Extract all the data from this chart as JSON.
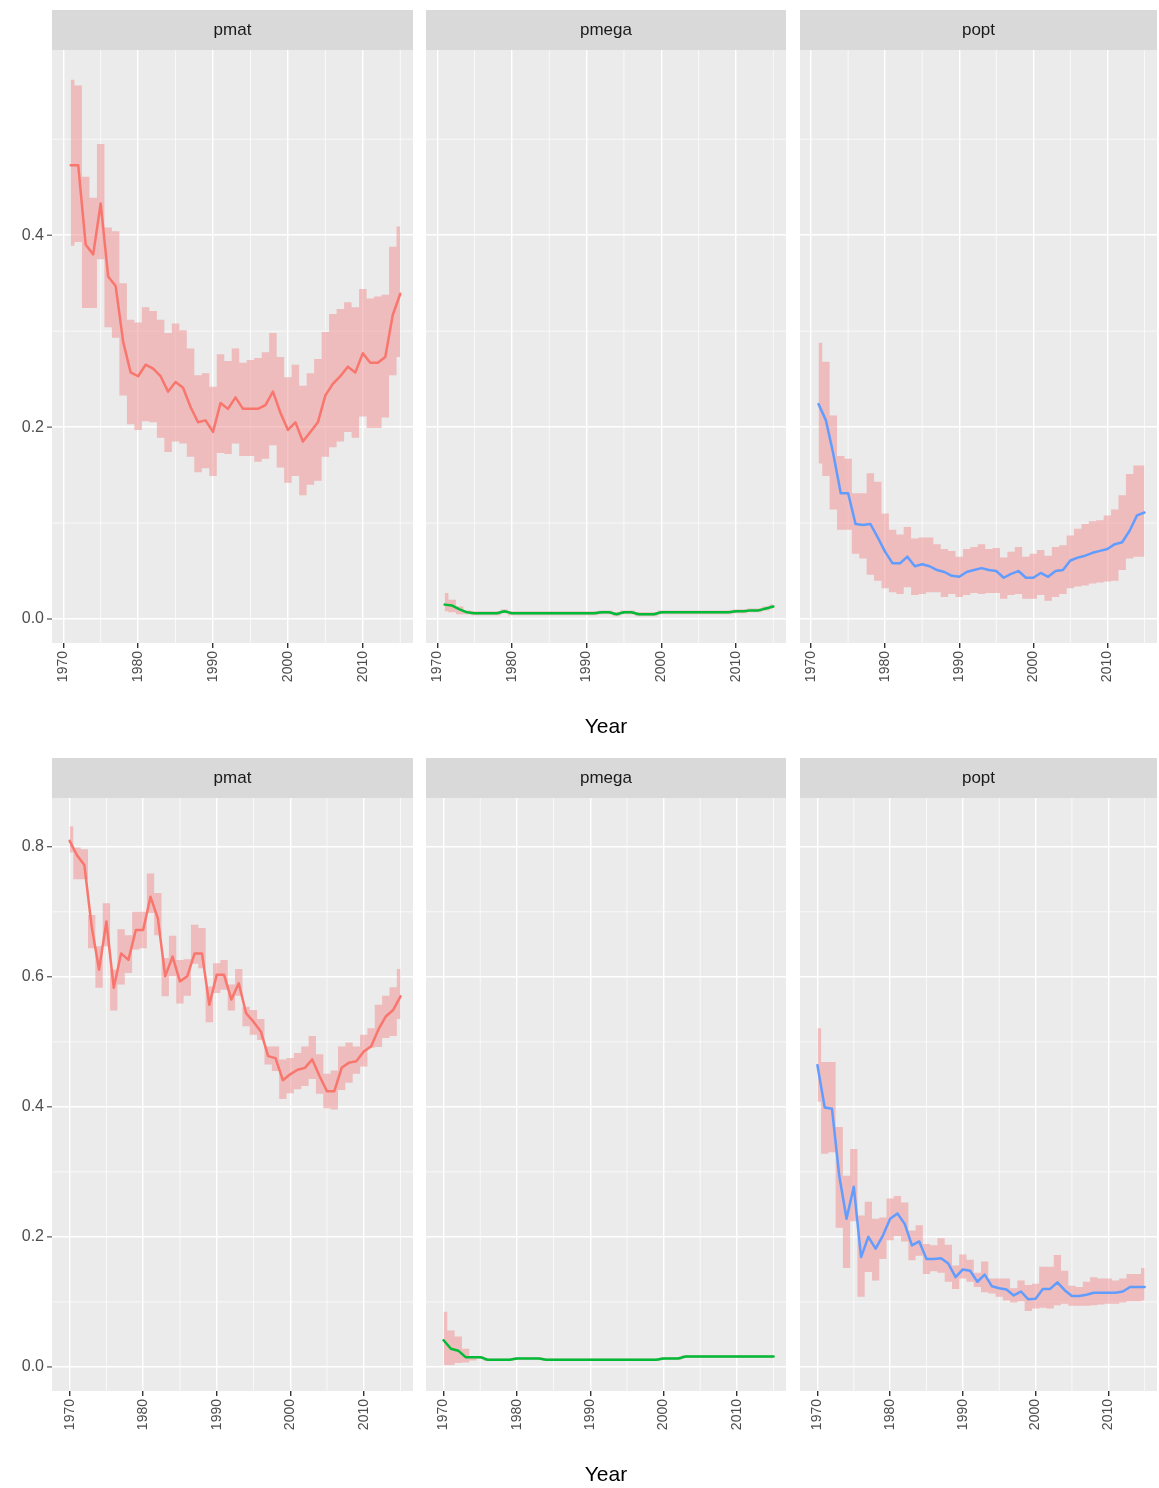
{
  "chart_data": [
    {
      "type": "line",
      "title": "pmat",
      "x": [
        1971,
        1972,
        1973,
        1974,
        1975,
        1976,
        1977,
        1978,
        1979,
        1980,
        1981,
        1982,
        1983,
        1984,
        1985,
        1986,
        1987,
        1988,
        1989,
        1990,
        1991,
        1992,
        1993,
        1994,
        1995,
        1996,
        1997,
        1998,
        1999,
        2000,
        2001,
        2002,
        2003,
        2004,
        2005,
        2006,
        2007,
        2008,
        2009,
        2010,
        2011,
        2012,
        2013,
        2014,
        2015
      ],
      "series": [
        {
          "color": "#f8766d",
          "values": [
            0.473,
            0.473,
            0.39,
            0.38,
            0.433,
            0.357,
            0.347,
            0.289,
            0.257,
            0.253,
            0.265,
            0.261,
            0.253,
            0.237,
            0.247,
            0.241,
            0.221,
            0.205,
            0.207,
            0.195,
            0.225,
            0.219,
            0.231,
            0.219,
            0.219,
            0.219,
            0.223,
            0.237,
            0.215,
            0.197,
            0.205,
            0.185,
            0.195,
            0.205,
            0.233,
            0.245,
            0.253,
            0.263,
            0.257,
            0.277,
            0.267,
            0.267,
            0.273,
            0.317,
            0.339
          ],
          "upper": [
            0.562,
            0.556,
            0.461,
            0.439,
            0.495,
            0.408,
            0.404,
            0.35,
            0.312,
            0.309,
            0.325,
            0.321,
            0.312,
            0.298,
            0.308,
            0.301,
            0.282,
            0.254,
            0.256,
            0.242,
            0.276,
            0.269,
            0.282,
            0.267,
            0.27,
            0.272,
            0.278,
            0.298,
            0.273,
            0.252,
            0.265,
            0.243,
            0.256,
            0.271,
            0.299,
            0.318,
            0.323,
            0.33,
            0.325,
            0.344,
            0.334,
            0.336,
            0.338,
            0.388,
            0.409
          ],
          "lower": [
            0.389,
            0.393,
            0.324,
            0.324,
            0.375,
            0.304,
            0.293,
            0.233,
            0.203,
            0.197,
            0.206,
            0.205,
            0.189,
            0.174,
            0.185,
            0.183,
            0.169,
            0.153,
            0.157,
            0.149,
            0.173,
            0.172,
            0.183,
            0.17,
            0.17,
            0.164,
            0.167,
            0.181,
            0.158,
            0.142,
            0.149,
            0.129,
            0.14,
            0.144,
            0.169,
            0.179,
            0.185,
            0.195,
            0.189,
            0.211,
            0.199,
            0.199,
            0.21,
            0.254,
            0.273
          ]
        }
      ],
      "xlim": [
        1968.5,
        2016.7
      ],
      "xticks": [
        1970,
        1980,
        1990,
        2000,
        2010
      ],
      "ylim": [
        -0.025,
        0.593
      ],
      "yticks": [
        {
          "value": 0,
          "label": "0.0"
        },
        0.2,
        0.4
      ],
      "grid": true
    },
    {
      "type": "line",
      "title": "pmega",
      "xlabel": "Year",
      "x": [
        1971,
        1972,
        1973,
        1974,
        1975,
        1976,
        1977,
        1978,
        1979,
        1980,
        1981,
        1982,
        1983,
        1984,
        1985,
        1986,
        1987,
        1988,
        1989,
        1990,
        1991,
        1992,
        1993,
        1994,
        1995,
        1996,
        1997,
        1998,
        1999,
        2000,
        2001,
        2002,
        2003,
        2004,
        2005,
        2006,
        2007,
        2008,
        2009,
        2010,
        2011,
        2012,
        2013,
        2014,
        2015
      ],
      "series": [
        {
          "color": "#00ba38",
          "values": [
            0.015,
            0.014,
            0.01,
            0.007,
            0.006,
            0.006,
            0.006,
            0.006,
            0.008,
            0.006,
            0.006,
            0.006,
            0.006,
            0.006,
            0.006,
            0.006,
            0.006,
            0.006,
            0.006,
            0.006,
            0.006,
            0.007,
            0.007,
            0.005,
            0.007,
            0.007,
            0.005,
            0.005,
            0.005,
            0.007,
            0.007,
            0.007,
            0.007,
            0.007,
            0.007,
            0.007,
            0.007,
            0.007,
            0.007,
            0.008,
            0.008,
            0.009,
            0.009,
            0.011,
            0.013
          ],
          "upper": [
            0.027,
            0.02,
            0.013,
            0.009,
            0.008,
            0.008,
            0.008,
            0.008,
            0.01,
            0.008,
            0.008,
            0.008,
            0.008,
            0.008,
            0.008,
            0.008,
            0.008,
            0.008,
            0.008,
            0.008,
            0.008,
            0.009,
            0.009,
            0.007,
            0.009,
            0.009,
            0.007,
            0.007,
            0.007,
            0.009,
            0.009,
            0.009,
            0.009,
            0.009,
            0.009,
            0.009,
            0.009,
            0.009,
            0.009,
            0.01,
            0.01,
            0.011,
            0.011,
            0.013,
            0.015
          ],
          "lower": [
            0.008,
            0.007,
            0.005,
            0.005,
            0.004,
            0.004,
            0.004,
            0.004,
            0.006,
            0.004,
            0.004,
            0.004,
            0.004,
            0.004,
            0.004,
            0.004,
            0.004,
            0.004,
            0.004,
            0.004,
            0.004,
            0.005,
            0.005,
            0.003,
            0.005,
            0.005,
            0.003,
            0.003,
            0.003,
            0.005,
            0.005,
            0.005,
            0.005,
            0.005,
            0.005,
            0.005,
            0.005,
            0.005,
            0.005,
            0.006,
            0.006,
            0.007,
            0.007,
            0.009,
            0.011
          ]
        }
      ],
      "xlim": [
        1968.5,
        2016.7
      ],
      "xticks": [
        1970,
        1980,
        1990,
        2000,
        2010
      ],
      "ylim": [
        -0.025,
        0.593
      ],
      "yticks": [
        0,
        0.2,
        0.4
      ],
      "grid": true,
      "tick_labels": "x"
    },
    {
      "type": "line",
      "title": "popt",
      "x": [
        1971,
        1972,
        1973,
        1974,
        1975,
        1976,
        1977,
        1978,
        1979,
        1980,
        1981,
        1982,
        1983,
        1984,
        1985,
        1986,
        1987,
        1988,
        1989,
        1990,
        1991,
        1992,
        1993,
        1994,
        1995,
        1996,
        1997,
        1998,
        1999,
        2000,
        2001,
        2002,
        2003,
        2004,
        2005,
        2006,
        2007,
        2008,
        2009,
        2010,
        2011,
        2012,
        2013,
        2014,
        2015
      ],
      "series": [
        {
          "color": "#619cff",
          "values": [
            0.224,
            0.207,
            0.172,
            0.131,
            0.131,
            0.099,
            0.098,
            0.099,
            0.085,
            0.07,
            0.058,
            0.058,
            0.065,
            0.055,
            0.057,
            0.055,
            0.051,
            0.049,
            0.045,
            0.044,
            0.049,
            0.051,
            0.053,
            0.051,
            0.05,
            0.043,
            0.047,
            0.05,
            0.043,
            0.043,
            0.048,
            0.044,
            0.05,
            0.051,
            0.061,
            0.064,
            0.066,
            0.069,
            0.071,
            0.073,
            0.078,
            0.08,
            0.092,
            0.108,
            0.111
          ],
          "upper": [
            0.288,
            0.268,
            0.212,
            0.17,
            0.167,
            0.131,
            0.131,
            0.152,
            0.143,
            0.11,
            0.093,
            0.088,
            0.096,
            0.084,
            0.085,
            0.085,
            0.078,
            0.073,
            0.071,
            0.065,
            0.073,
            0.075,
            0.078,
            0.073,
            0.074,
            0.064,
            0.07,
            0.075,
            0.065,
            0.068,
            0.072,
            0.066,
            0.075,
            0.077,
            0.087,
            0.094,
            0.099,
            0.102,
            0.103,
            0.108,
            0.114,
            0.129,
            0.151,
            0.16,
            0.16
          ],
          "lower": [
            0.162,
            0.149,
            0.114,
            0.093,
            0.093,
            0.068,
            0.063,
            0.046,
            0.04,
            0.032,
            0.028,
            0.026,
            0.033,
            0.025,
            0.026,
            0.028,
            0.028,
            0.023,
            0.026,
            0.023,
            0.025,
            0.027,
            0.026,
            0.027,
            0.027,
            0.021,
            0.025,
            0.026,
            0.021,
            0.021,
            0.025,
            0.019,
            0.023,
            0.026,
            0.032,
            0.034,
            0.035,
            0.037,
            0.038,
            0.039,
            0.04,
            0.051,
            0.063,
            0.065,
            0.065
          ]
        }
      ],
      "xlim": [
        1968.5,
        2016.7
      ],
      "xticks": [
        1970,
        1980,
        1990,
        2000,
        2010
      ],
      "ylim": [
        -0.025,
        0.593
      ],
      "yticks": [
        0,
        0.2,
        0.4
      ],
      "grid": true,
      "tick_labels": "x"
    },
    {
      "type": "line",
      "title": "pmat",
      "x": [
        1970,
        1971,
        1972,
        1973,
        1974,
        1975,
        1976,
        1977,
        1978,
        1979,
        1980,
        1981,
        1982,
        1983,
        1984,
        1985,
        1986,
        1987,
        1988,
        1989,
        1990,
        1991,
        1992,
        1993,
        1994,
        1995,
        1996,
        1997,
        1998,
        1999,
        2000,
        2001,
        2002,
        2003,
        2004,
        2005,
        2006,
        2007,
        2008,
        2009,
        2010,
        2011,
        2012,
        2013,
        2014,
        2015
      ],
      "series": [
        {
          "color": "#f8766d",
          "values": [
            0.809,
            0.787,
            0.772,
            0.677,
            0.611,
            0.685,
            0.583,
            0.636,
            0.626,
            0.672,
            0.672,
            0.723,
            0.69,
            0.601,
            0.631,
            0.593,
            0.601,
            0.636,
            0.636,
            0.557,
            0.603,
            0.603,
            0.565,
            0.59,
            0.544,
            0.531,
            0.516,
            0.478,
            0.475,
            0.441,
            0.45,
            0.457,
            0.46,
            0.473,
            0.447,
            0.424,
            0.424,
            0.46,
            0.468,
            0.47,
            0.485,
            0.493,
            0.519,
            0.539,
            0.549,
            0.57
          ],
          "upper": [
            0.831,
            0.799,
            0.796,
            0.695,
            0.647,
            0.713,
            0.611,
            0.673,
            0.664,
            0.7,
            0.7,
            0.759,
            0.729,
            0.629,
            0.663,
            0.626,
            0.627,
            0.68,
            0.675,
            0.585,
            0.621,
            0.626,
            0.588,
            0.612,
            0.554,
            0.549,
            0.535,
            0.493,
            0.493,
            0.473,
            0.475,
            0.483,
            0.493,
            0.509,
            0.481,
            0.451,
            0.456,
            0.493,
            0.499,
            0.493,
            0.511,
            0.521,
            0.557,
            0.571,
            0.584,
            0.612
          ],
          "lower": [
            0.791,
            0.75,
            0.75,
            0.644,
            0.583,
            0.647,
            0.548,
            0.588,
            0.606,
            0.642,
            0.644,
            0.698,
            0.664,
            0.57,
            0.601,
            0.559,
            0.571,
            0.62,
            0.613,
            0.53,
            0.575,
            0.58,
            0.548,
            0.571,
            0.524,
            0.511,
            0.503,
            0.465,
            0.455,
            0.412,
            0.421,
            0.427,
            0.432,
            0.443,
            0.42,
            0.398,
            0.396,
            0.426,
            0.437,
            0.451,
            0.462,
            0.491,
            0.492,
            0.506,
            0.509,
            0.535
          ]
        }
      ],
      "xlim": [
        1967.6,
        2016.7
      ],
      "xticks": [
        1970,
        1980,
        1990,
        2000,
        2010
      ],
      "ylim": [
        -0.037,
        0.875
      ],
      "yticks": [
        {
          "value": 0,
          "label": "0.0"
        },
        0.2,
        0.4,
        0.6,
        0.8
      ],
      "grid": true
    },
    {
      "type": "line",
      "title": "pmega",
      "xlabel": "Year",
      "x": [
        1970,
        1971,
        1972,
        1973,
        1974,
        1975,
        1976,
        1977,
        1978,
        1979,
        1980,
        1981,
        1982,
        1983,
        1984,
        1985,
        1986,
        1987,
        1988,
        1989,
        1990,
        1991,
        1992,
        1993,
        1994,
        1995,
        1996,
        1997,
        1998,
        1999,
        2000,
        2001,
        2002,
        2003,
        2004,
        2005,
        2006,
        2007,
        2008,
        2009,
        2010,
        2011,
        2012,
        2013,
        2014,
        2015
      ],
      "series": [
        {
          "color": "#00ba38",
          "values": [
            0.041,
            0.028,
            0.025,
            0.015,
            0.015,
            0.015,
            0.011,
            0.011,
            0.011,
            0.011,
            0.013,
            0.013,
            0.013,
            0.013,
            0.011,
            0.011,
            0.011,
            0.011,
            0.011,
            0.011,
            0.011,
            0.011,
            0.011,
            0.011,
            0.011,
            0.011,
            0.011,
            0.011,
            0.011,
            0.011,
            0.013,
            0.013,
            0.013,
            0.016,
            0.016,
            0.016,
            0.016,
            0.016,
            0.016,
            0.016,
            0.016,
            0.016,
            0.016,
            0.016,
            0.016,
            0.016
          ],
          "upper": [
            0.085,
            0.056,
            0.047,
            0.028,
            0.017,
            0.017,
            0.013,
            0.013,
            0.013,
            0.013,
            0.015,
            0.015,
            0.015,
            0.015,
            0.013,
            0.013,
            0.013,
            0.013,
            0.013,
            0.013,
            0.013,
            0.013,
            0.013,
            0.013,
            0.013,
            0.013,
            0.013,
            0.013,
            0.013,
            0.013,
            0.015,
            0.015,
            0.015,
            0.018,
            0.018,
            0.018,
            0.018,
            0.018,
            0.018,
            0.018,
            0.018,
            0.018,
            0.018,
            0.018,
            0.018,
            0.018
          ],
          "lower": [
            0.003,
            0.003,
            0.006,
            0.007,
            0.01,
            0.013,
            0.009,
            0.009,
            0.009,
            0.009,
            0.011,
            0.011,
            0.011,
            0.011,
            0.009,
            0.009,
            0.009,
            0.009,
            0.009,
            0.009,
            0.009,
            0.009,
            0.009,
            0.009,
            0.009,
            0.009,
            0.009,
            0.009,
            0.009,
            0.009,
            0.011,
            0.011,
            0.011,
            0.014,
            0.014,
            0.014,
            0.014,
            0.014,
            0.014,
            0.014,
            0.014,
            0.014,
            0.014,
            0.014,
            0.014,
            0.014
          ]
        }
      ],
      "xlim": [
        1967.6,
        2016.7
      ],
      "xticks": [
        1970,
        1980,
        1990,
        2000,
        2010
      ],
      "ylim": [
        -0.037,
        0.875
      ],
      "yticks": [
        0,
        0.2,
        0.4,
        0.6,
        0.8
      ],
      "grid": true,
      "tick_labels": "x"
    },
    {
      "type": "line",
      "title": "popt",
      "x": [
        1970,
        1971,
        1972,
        1973,
        1974,
        1975,
        1976,
        1977,
        1978,
        1979,
        1980,
        1981,
        1982,
        1983,
        1984,
        1985,
        1986,
        1987,
        1988,
        1989,
        1990,
        1991,
        1992,
        1993,
        1994,
        1995,
        1996,
        1997,
        1998,
        1999,
        2000,
        2001,
        2002,
        2003,
        2004,
        2005,
        2006,
        2007,
        2008,
        2009,
        2010,
        2011,
        2012,
        2013,
        2014,
        2015
      ],
      "series": [
        {
          "color": "#619cff",
          "values": [
            0.464,
            0.399,
            0.397,
            0.294,
            0.228,
            0.277,
            0.169,
            0.2,
            0.182,
            0.202,
            0.228,
            0.236,
            0.22,
            0.187,
            0.193,
            0.166,
            0.166,
            0.167,
            0.159,
            0.138,
            0.15,
            0.148,
            0.131,
            0.142,
            0.124,
            0.121,
            0.119,
            0.11,
            0.116,
            0.104,
            0.105,
            0.12,
            0.12,
            0.13,
            0.118,
            0.109,
            0.109,
            0.111,
            0.114,
            0.114,
            0.114,
            0.114,
            0.116,
            0.123,
            0.123,
            0.123
          ],
          "upper": [
            0.521,
            0.469,
            0.469,
            0.369,
            0.294,
            0.335,
            0.233,
            0.254,
            0.228,
            0.23,
            0.259,
            0.263,
            0.253,
            0.21,
            0.218,
            0.189,
            0.187,
            0.198,
            0.188,
            0.156,
            0.173,
            0.165,
            0.145,
            0.162,
            0.136,
            0.136,
            0.136,
            0.121,
            0.133,
            0.126,
            0.128,
            0.154,
            0.154,
            0.172,
            0.148,
            0.125,
            0.123,
            0.131,
            0.138,
            0.136,
            0.136,
            0.133,
            0.136,
            0.143,
            0.143,
            0.152
          ],
          "lower": [
            0.408,
            0.328,
            0.33,
            0.214,
            0.152,
            0.224,
            0.108,
            0.146,
            0.133,
            0.166,
            0.195,
            0.201,
            0.193,
            0.164,
            0.171,
            0.143,
            0.147,
            0.145,
            0.131,
            0.12,
            0.136,
            0.131,
            0.123,
            0.115,
            0.113,
            0.108,
            0.102,
            0.099,
            0.101,
            0.086,
            0.09,
            0.091,
            0.09,
            0.095,
            0.097,
            0.094,
            0.094,
            0.094,
            0.095,
            0.096,
            0.097,
            0.097,
            0.099,
            0.101,
            0.101,
            0.102
          ]
        }
      ],
      "xlim": [
        1967.6,
        2016.7
      ],
      "xticks": [
        1970,
        1980,
        1990,
        2000,
        2010
      ],
      "ylim": [
        -0.037,
        0.875
      ],
      "yticks": [
        0,
        0.2,
        0.4,
        0.6,
        0.8
      ],
      "grid": true,
      "tick_labels": "x"
    }
  ]
}
